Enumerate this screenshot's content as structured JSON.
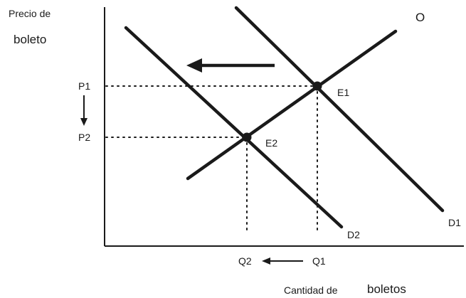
{
  "axes": {
    "y_label_line1": "Precio de",
    "y_label_line2": "boleto",
    "x_label_part1": "Cantidad de",
    "x_label_part2": "boletos"
  },
  "curves": {
    "supply": "O",
    "demand_initial": "D1",
    "demand_new": "D2"
  },
  "equilibria": {
    "initial": "E1",
    "new": "E2"
  },
  "prices": {
    "initial": "P1",
    "new": "P2"
  },
  "quantities": {
    "initial": "Q1",
    "new": "Q2"
  },
  "colors": {
    "ink": "#1a1a1a",
    "background": "#ffffff"
  }
}
